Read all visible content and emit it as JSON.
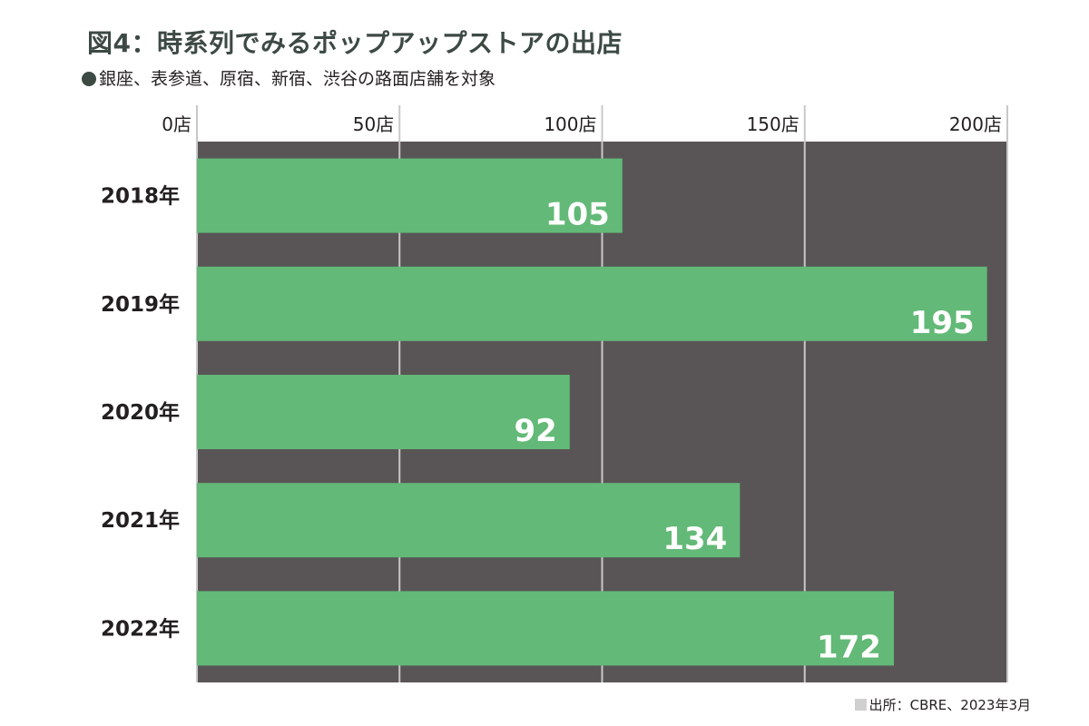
{
  "header": {
    "title": "図4：時系列でみるポップアップストアの出店",
    "subtitle": "銀座、表参道、原宿、新宿、渋谷の路面店舗を対象"
  },
  "source": "出所：CBRE、2023年3月",
  "colors": {
    "bar": "#63b977",
    "plot_background": "#595556",
    "gridline": "#c8c8c8",
    "title": "#3d4a44"
  },
  "chart_data": {
    "type": "bar",
    "orientation": "horizontal",
    "categories": [
      "2018年",
      "2019年",
      "2020年",
      "2021年",
      "2022年"
    ],
    "values": [
      105,
      195,
      92,
      134,
      172
    ],
    "value_labels": [
      "105",
      "195",
      "92",
      "134",
      "172"
    ],
    "xlim": [
      0,
      200
    ],
    "x_ticks": [
      0,
      50,
      100,
      150,
      200
    ],
    "x_tick_labels": [
      "0店",
      "50店",
      "100店",
      "150店",
      "200店"
    ],
    "grid": true,
    "tick_position": "top"
  }
}
